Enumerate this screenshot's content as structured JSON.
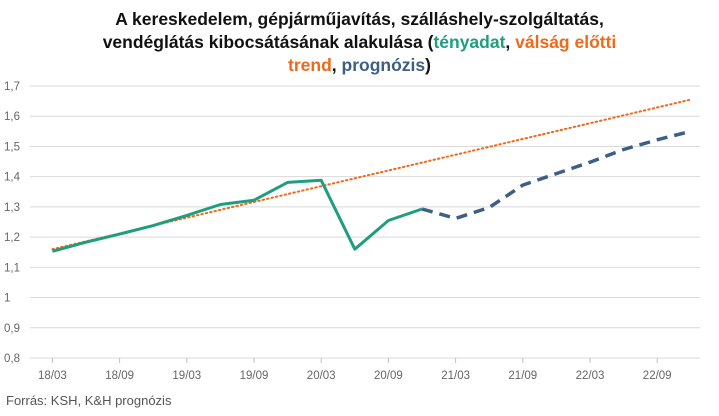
{
  "title": {
    "line1": "A kereskedelem, gépjárműjavítás, szálláshely-szolgáltatás,",
    "line2_main": "vendéglátás kibocsátásának alakulása (",
    "legend_actual": "tényadat",
    "sep1": ", ",
    "legend_trend_a": "válság előtti",
    "legend_trend_b": "trend",
    "sep2": ", ",
    "legend_forecast": "prognózis",
    "close": ")"
  },
  "source": "Forrás: KSH, K&H prognózis",
  "colors": {
    "actual": "#1f9e7f",
    "trend": "#ee6a1a",
    "forecast": "#3d5f86",
    "grid": "#d9d9d9"
  },
  "chart_data": {
    "type": "line",
    "x_tick_labels": [
      "18/03",
      "18/09",
      "19/03",
      "19/09",
      "20/03",
      "20/09",
      "21/03",
      "21/09",
      "22/03",
      "22/09"
    ],
    "y_tick_labels": [
      "0,8",
      "0,9",
      "1",
      "1,1",
      "1,2",
      "1,3",
      "1,4",
      "1,5",
      "1,6",
      "1,7"
    ],
    "ylim": [
      0.8,
      1.7
    ],
    "grid": "horizontal",
    "series": [
      {
        "name": "tényadat",
        "style": "solid",
        "x": [
          "18/03",
          "18/06",
          "18/09",
          "18/12",
          "19/03",
          "19/06",
          "19/09",
          "19/12",
          "20/03",
          "20/06",
          "20/09",
          "20/12"
        ],
        "values": [
          1.153,
          1.183,
          1.21,
          1.238,
          1.272,
          1.308,
          1.322,
          1.381,
          1.388,
          1.16,
          1.255,
          1.293
        ]
      },
      {
        "name": "válság előtti trend",
        "style": "dotted",
        "x": [
          "18/03",
          "22/12"
        ],
        "values": [
          1.16,
          1.655
        ]
      },
      {
        "name": "prognózis",
        "style": "dashed",
        "x": [
          "20/12",
          "21/03",
          "21/06",
          "21/09",
          "21/12",
          "22/03",
          "22/06",
          "22/09",
          "22/12"
        ],
        "values": [
          1.293,
          1.262,
          1.298,
          1.372,
          1.41,
          1.448,
          1.49,
          1.522,
          1.55
        ]
      }
    ]
  }
}
